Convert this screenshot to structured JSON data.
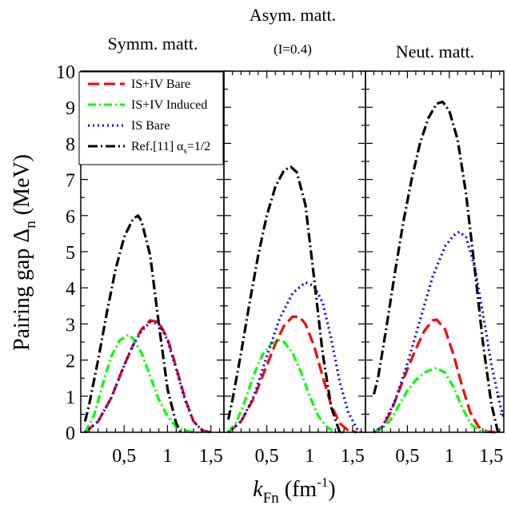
{
  "figure": {
    "ylabel_main": "Pairing gap Δ",
    "ylabel_sub": "n",
    "ylabel_unit": "(MeV)",
    "xlabel_main": "k",
    "xlabel_sub": "Fn",
    "xlabel_unit": "(fm",
    "xlabel_exp": "-1",
    "xlabel_close": ")"
  },
  "legend": {
    "entries": [
      {
        "label": "IS+IV Bare",
        "color": "#ff0000",
        "style": "longdash"
      },
      {
        "label": "IS+IV Induced",
        "color": "#00ff00",
        "style": "dashdot"
      },
      {
        "label": "IS Bare",
        "color": "#0000ff",
        "style": "dot"
      },
      {
        "label": "Ref.[11] α",
        "label_sub": "s",
        "label_tail": "=1/2",
        "color": "#000000",
        "style": "dashdotlong"
      }
    ]
  },
  "chart_data": [
    {
      "type": "line",
      "panel": "Symmetric matter",
      "title": "Symm. matt.",
      "subtitle": "",
      "xlim": [
        0,
        1.65
      ],
      "ylim": [
        0,
        10
      ],
      "xticks": [
        "0,5",
        "1",
        "1,5"
      ],
      "yticks": [
        "0",
        "1",
        "2",
        "3",
        "4",
        "5",
        "6",
        "7",
        "8",
        "9",
        "10"
      ],
      "grid": false,
      "series": [
        {
          "name": "IS+IV Bare",
          "color": "#ff0000",
          "x": [
            0.05,
            0.2,
            0.35,
            0.5,
            0.6,
            0.7,
            0.8,
            0.9,
            1.0,
            1.1,
            1.2,
            1.3,
            1.4,
            1.5
          ],
          "y": [
            0.0,
            0.3,
            0.95,
            1.85,
            2.4,
            2.85,
            3.1,
            3.05,
            2.6,
            1.8,
            0.95,
            0.3,
            0.05,
            0.0
          ]
        },
        {
          "name": "IS+IV Induced",
          "color": "#00ff00",
          "x": [
            0.05,
            0.15,
            0.25,
            0.35,
            0.45,
            0.55,
            0.6,
            0.7,
            0.8,
            0.9,
            1.0,
            1.1,
            1.2,
            1.3,
            1.4
          ],
          "y": [
            0.0,
            0.45,
            1.3,
            2.1,
            2.55,
            2.7,
            2.6,
            2.2,
            1.55,
            0.9,
            0.45,
            0.15,
            0.05,
            0.0,
            0.0
          ]
        },
        {
          "name": "IS Bare",
          "color": "#0000ff",
          "x": [
            0.05,
            0.2,
            0.35,
            0.5,
            0.6,
            0.7,
            0.8,
            0.9,
            1.0,
            1.1,
            1.2,
            1.3,
            1.4,
            1.5
          ],
          "y": [
            0.0,
            0.3,
            0.95,
            1.85,
            2.4,
            2.8,
            3.05,
            3.0,
            2.55,
            1.75,
            0.9,
            0.3,
            0.05,
            0.0
          ]
        },
        {
          "name": "Ref.[11] αs=1/2",
          "color": "#000000",
          "x": [
            0.05,
            0.1,
            0.2,
            0.3,
            0.4,
            0.5,
            0.6,
            0.66,
            0.7,
            0.8,
            0.9,
            1.0,
            1.1,
            1.15
          ],
          "y": [
            0.3,
            0.8,
            2.0,
            3.3,
            4.5,
            5.4,
            5.9,
            6.0,
            5.85,
            4.9,
            3.0,
            1.2,
            0.25,
            0.0
          ]
        }
      ]
    },
    {
      "type": "line",
      "panel": "Asymmetric matter",
      "title": "Asym. matt.",
      "subtitle": "(I=0.4)",
      "xlim": [
        0,
        1.65
      ],
      "ylim": [
        0,
        10
      ],
      "xticks": [
        "0,5",
        "1",
        "1,5"
      ],
      "yticks": [],
      "grid": false,
      "series": [
        {
          "name": "IS+IV Bare",
          "color": "#ff0000",
          "x": [
            0.05,
            0.2,
            0.35,
            0.5,
            0.6,
            0.7,
            0.8,
            0.88,
            0.95,
            1.05,
            1.15,
            1.25,
            1.35,
            1.45,
            1.55
          ],
          "y": [
            0.0,
            0.3,
            0.95,
            1.85,
            2.45,
            2.95,
            3.2,
            3.2,
            3.0,
            2.4,
            1.55,
            0.75,
            0.25,
            0.05,
            0.0
          ]
        },
        {
          "name": "IS+IV Induced",
          "color": "#00ff00",
          "x": [
            0.05,
            0.15,
            0.25,
            0.35,
            0.45,
            0.55,
            0.65,
            0.7,
            0.8,
            0.9,
            1.0,
            1.1,
            1.2,
            1.3,
            1.4
          ],
          "y": [
            0.0,
            0.3,
            0.9,
            1.6,
            2.15,
            2.45,
            2.55,
            2.5,
            2.2,
            1.65,
            1.0,
            0.45,
            0.15,
            0.0,
            0.0
          ]
        },
        {
          "name": "IS Bare",
          "color": "#0000ff",
          "x": [
            0.05,
            0.2,
            0.35,
            0.5,
            0.65,
            0.8,
            0.95,
            1.05,
            1.15,
            1.25,
            1.35,
            1.45,
            1.55,
            1.6
          ],
          "y": [
            0.0,
            0.3,
            1.0,
            2.1,
            3.15,
            3.85,
            4.15,
            4.05,
            3.6,
            2.6,
            1.4,
            0.55,
            0.1,
            0.0
          ]
        },
        {
          "name": "Ref.[11] αs=1/2",
          "color": "#000000",
          "x": [
            0.05,
            0.1,
            0.2,
            0.3,
            0.4,
            0.5,
            0.6,
            0.7,
            0.78,
            0.85,
            0.95,
            1.05,
            1.15,
            1.25,
            1.35
          ],
          "y": [
            0.35,
            0.9,
            2.2,
            3.6,
            4.9,
            6.0,
            6.8,
            7.25,
            7.35,
            7.2,
            6.3,
            4.3,
            2.2,
            0.7,
            0.0
          ]
        }
      ]
    },
    {
      "type": "line",
      "panel": "Neutron matter",
      "title": "Neut. matt.",
      "subtitle": "",
      "xlim": [
        0,
        1.65
      ],
      "ylim": [
        0,
        10
      ],
      "xticks": [
        "0,5",
        "1",
        "1,5"
      ],
      "yticks": [],
      "grid": false,
      "series": [
        {
          "name": "IS+IV Bare",
          "color": "#ff0000",
          "x": [
            0.1,
            0.2,
            0.3,
            0.4,
            0.5,
            0.6,
            0.7,
            0.8,
            0.85,
            0.95,
            1.05,
            1.15,
            1.25,
            1.35,
            1.45,
            1.55
          ],
          "y": [
            0.0,
            0.15,
            0.55,
            1.15,
            1.75,
            2.3,
            2.8,
            3.1,
            3.12,
            2.85,
            2.15,
            1.3,
            0.55,
            0.15,
            0.02,
            0.0
          ]
        },
        {
          "name": "IS+IV Induced",
          "color": "#00ff00",
          "x": [
            0.1,
            0.2,
            0.3,
            0.4,
            0.5,
            0.6,
            0.7,
            0.8,
            0.85,
            0.95,
            1.05,
            1.15,
            1.25,
            1.35,
            1.45
          ],
          "y": [
            0.0,
            0.1,
            0.35,
            0.75,
            1.15,
            1.45,
            1.65,
            1.75,
            1.78,
            1.65,
            1.25,
            0.7,
            0.25,
            0.05,
            0.0
          ]
        },
        {
          "name": "IS Bare",
          "color": "#0000ff",
          "x": [
            0.1,
            0.2,
            0.35,
            0.5,
            0.65,
            0.8,
            0.95,
            1.05,
            1.12,
            1.2,
            1.3,
            1.4,
            1.5,
            1.6,
            1.65
          ],
          "y": [
            0.0,
            0.15,
            0.85,
            1.9,
            3.1,
            4.3,
            5.15,
            5.45,
            5.55,
            5.4,
            4.6,
            3.3,
            1.9,
            0.8,
            0.4
          ]
        },
        {
          "name": "Ref.[11] αs=1/2",
          "color": "#000000",
          "x": [
            0.1,
            0.15,
            0.25,
            0.35,
            0.45,
            0.55,
            0.65,
            0.75,
            0.85,
            0.92,
            1.0,
            1.1,
            1.2,
            1.3,
            1.4,
            1.5,
            1.58
          ],
          "y": [
            1.05,
            1.5,
            2.9,
            4.4,
            5.8,
            7.0,
            8.0,
            8.7,
            9.1,
            9.15,
            8.9,
            8.1,
            6.6,
            4.6,
            2.5,
            0.8,
            0.0
          ]
        }
      ]
    }
  ]
}
